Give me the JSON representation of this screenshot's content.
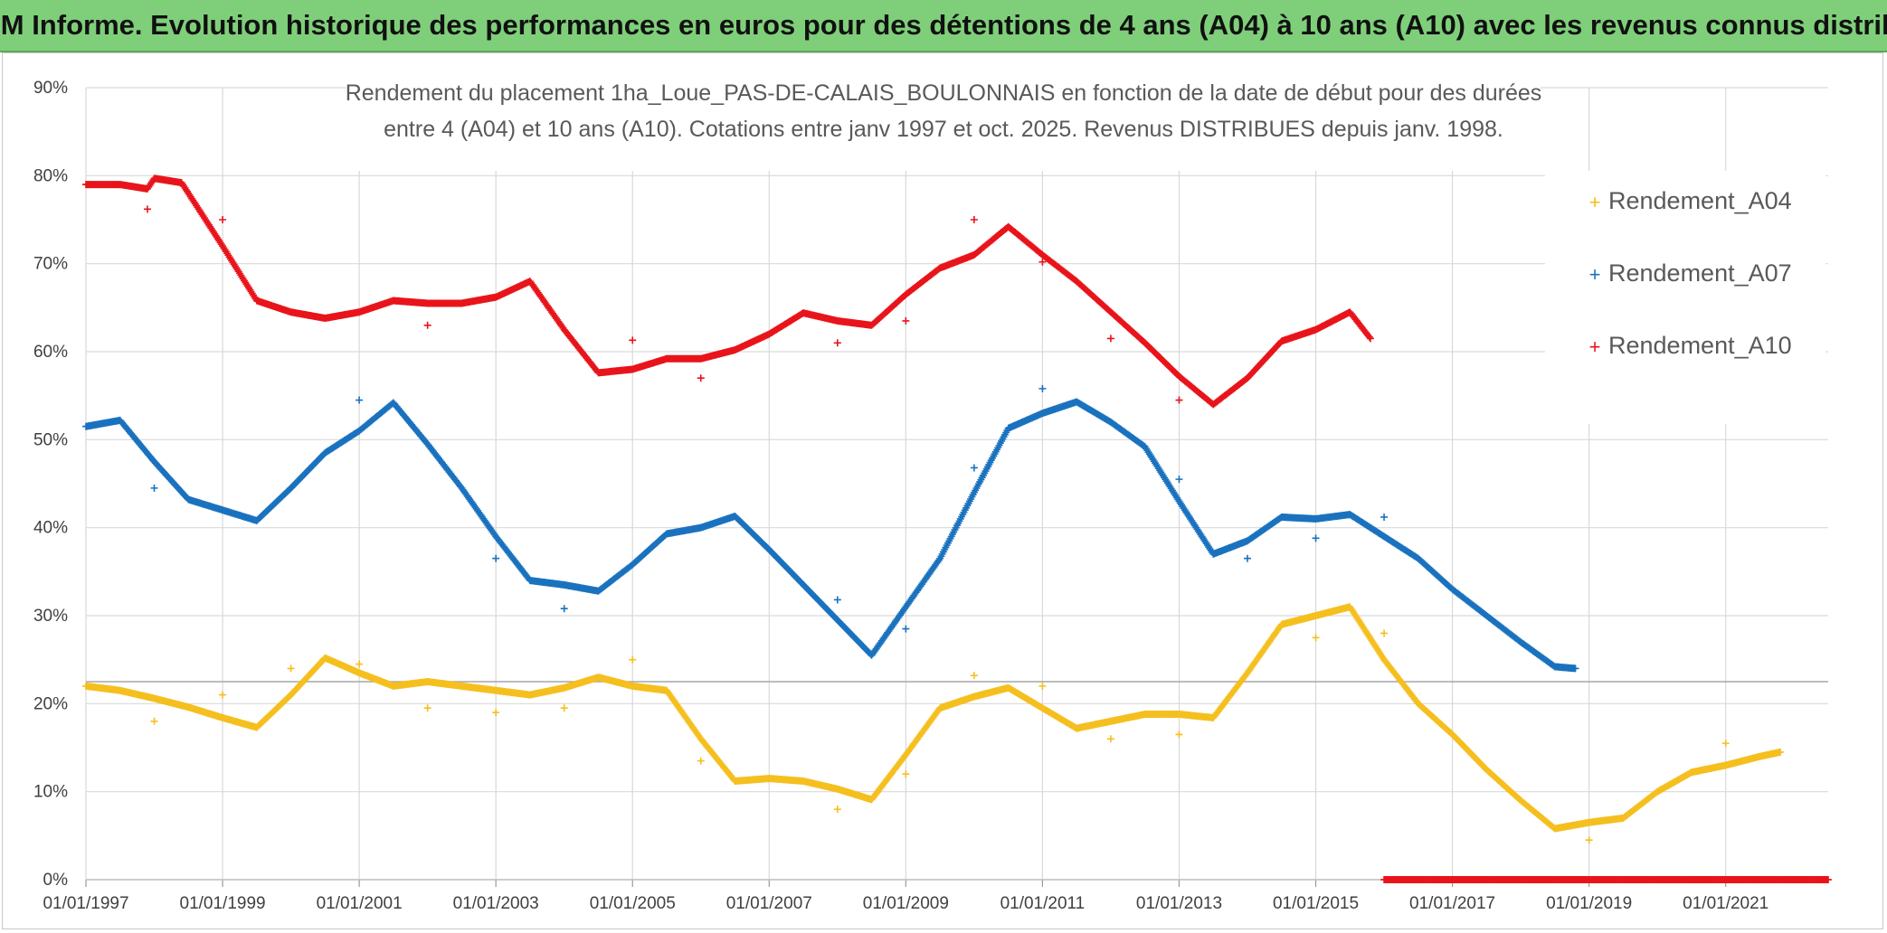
{
  "banner": {
    "title": "ADAM Informe. Evolution historique des performances en euros pour des détentions de 4 ans (A04) à 10 ans (A10) avec les revenus connus distribués"
  },
  "colors": {
    "banner_bg": "#7fcf7a",
    "A04": "#f5bf1f",
    "A07": "#1a72bf",
    "A10": "#e8141b",
    "grid": "#d9d9d9"
  },
  "chart_data": {
    "type": "scatter",
    "title_lines": [
      "Rendement du placement 1ha_Loue_PAS-DE-CALAIS_BOULONNAIS en fonction de la date de début pour des durées",
      "entre 4 (A04) et 10 ans (A10). Cotations entre janv 1997 et oct. 2025. Revenus DISTRIBUES depuis janv. 1998."
    ],
    "xlabel": "",
    "ylabel": "",
    "x_range": [
      1997.0,
      2022.5
    ],
    "ylim": [
      0,
      90
    ],
    "y_ticks": [
      "0%",
      "10%",
      "20%",
      "30%",
      "40%",
      "50%",
      "60%",
      "70%",
      "80%",
      "90%"
    ],
    "x_ticks": [
      "01/01/1997",
      "01/01/1999",
      "01/01/2001",
      "01/01/2003",
      "01/01/2005",
      "01/01/2007",
      "01/01/2009",
      "01/01/2011",
      "01/01/2013",
      "01/01/2015",
      "01/01/2017",
      "01/01/2019",
      "01/01/2021"
    ],
    "x_tick_years": [
      1997,
      1999,
      2001,
      2003,
      2005,
      2007,
      2009,
      2011,
      2013,
      2015,
      2017,
      2019,
      2021
    ],
    "legend_position": "right",
    "reference_line_y": 22.5,
    "series": [
      {
        "name": "Rendement_A04",
        "color": "#f5bf1f",
        "points": [
          [
            1997.0,
            22.0
          ],
          [
            1997.5,
            21.5
          ],
          [
            1998.0,
            20.6
          ],
          [
            1998.5,
            19.6
          ],
          [
            1999.0,
            18.4
          ],
          [
            1999.5,
            17.3
          ],
          [
            2000.0,
            21.0
          ],
          [
            2000.5,
            25.2
          ],
          [
            2001.0,
            23.5
          ],
          [
            2001.5,
            22.0
          ],
          [
            2002.0,
            22.5
          ],
          [
            2002.5,
            22.0
          ],
          [
            2003.0,
            21.5
          ],
          [
            2003.5,
            21.0
          ],
          [
            2004.0,
            21.8
          ],
          [
            2004.5,
            23.0
          ],
          [
            2005.0,
            22.0
          ],
          [
            2005.5,
            21.5
          ],
          [
            2006.0,
            16.0
          ],
          [
            2006.5,
            11.2
          ],
          [
            2007.0,
            11.5
          ],
          [
            2007.5,
            11.2
          ],
          [
            2008.0,
            10.3
          ],
          [
            2008.5,
            9.1
          ],
          [
            2009.0,
            14.2
          ],
          [
            2009.5,
            19.5
          ],
          [
            2010.0,
            20.8
          ],
          [
            2010.5,
            21.8
          ],
          [
            2011.0,
            19.5
          ],
          [
            2011.5,
            17.2
          ],
          [
            2012.0,
            18.0
          ],
          [
            2012.5,
            18.8
          ],
          [
            2013.0,
            18.8
          ],
          [
            2013.5,
            18.4
          ],
          [
            2014.0,
            23.5
          ],
          [
            2014.5,
            29.0
          ],
          [
            2015.0,
            30.0
          ],
          [
            2015.5,
            31.0
          ],
          [
            2016.0,
            25.0
          ],
          [
            2016.5,
            20.0
          ],
          [
            2017.0,
            16.5
          ],
          [
            2017.5,
            12.5
          ],
          [
            2018.0,
            9.0
          ],
          [
            2018.5,
            5.8
          ],
          [
            2019.0,
            6.5
          ],
          [
            2019.5,
            7.0
          ],
          [
            2020.0,
            10.0
          ],
          [
            2020.5,
            12.2
          ],
          [
            2021.0,
            13.0
          ],
          [
            2021.5,
            14.0
          ],
          [
            2021.8,
            14.5
          ]
        ],
        "outliers": [
          [
            1998.0,
            18.0
          ],
          [
            1999.0,
            21.0
          ],
          [
            2000.0,
            24.0
          ],
          [
            2001.0,
            24.5
          ],
          [
            2002.0,
            19.5
          ],
          [
            2003.0,
            19.0
          ],
          [
            2004.0,
            19.5
          ],
          [
            2005.0,
            25.0
          ],
          [
            2006.0,
            13.5
          ],
          [
            2008.0,
            8.0
          ],
          [
            2009.0,
            12.0
          ],
          [
            2010.0,
            23.2
          ],
          [
            2011.0,
            22.0
          ],
          [
            2012.0,
            16.0
          ],
          [
            2013.0,
            16.5
          ],
          [
            2015.0,
            27.5
          ],
          [
            2016.0,
            28.0
          ],
          [
            2019.0,
            4.5
          ],
          [
            2021.0,
            15.5
          ]
        ]
      },
      {
        "name": "Rendement_A07",
        "color": "#1a72bf",
        "points": [
          [
            1997.0,
            51.5
          ],
          [
            1997.5,
            52.2
          ],
          [
            1998.0,
            47.5
          ],
          [
            1998.5,
            43.2
          ],
          [
            1999.0,
            42.0
          ],
          [
            1999.5,
            40.8
          ],
          [
            2000.0,
            44.5
          ],
          [
            2000.5,
            48.5
          ],
          [
            2001.0,
            51.0
          ],
          [
            2001.5,
            54.2
          ],
          [
            2002.0,
            49.5
          ],
          [
            2002.5,
            44.5
          ],
          [
            2003.0,
            39.0
          ],
          [
            2003.5,
            34.0
          ],
          [
            2004.0,
            33.5
          ],
          [
            2004.5,
            32.8
          ],
          [
            2005.0,
            35.8
          ],
          [
            2005.5,
            39.3
          ],
          [
            2006.0,
            40.0
          ],
          [
            2006.5,
            41.3
          ],
          [
            2007.0,
            37.5
          ],
          [
            2007.5,
            33.5
          ],
          [
            2008.0,
            29.5
          ],
          [
            2008.5,
            25.5
          ],
          [
            2009.0,
            31.0
          ],
          [
            2009.5,
            36.5
          ],
          [
            2010.0,
            44.0
          ],
          [
            2010.5,
            51.3
          ],
          [
            2011.0,
            53.0
          ],
          [
            2011.5,
            54.3
          ],
          [
            2012.0,
            52.0
          ],
          [
            2012.5,
            49.2
          ],
          [
            2013.0,
            43.0
          ],
          [
            2013.5,
            37.0
          ],
          [
            2014.0,
            38.5
          ],
          [
            2014.5,
            41.2
          ],
          [
            2015.0,
            41.0
          ],
          [
            2015.5,
            41.5
          ],
          [
            2016.0,
            39.0
          ],
          [
            2016.5,
            36.5
          ],
          [
            2017.0,
            33.0
          ],
          [
            2017.5,
            30.0
          ],
          [
            2018.0,
            27.0
          ],
          [
            2018.5,
            24.2
          ],
          [
            2018.8,
            24.0
          ]
        ],
        "outliers": [
          [
            1998.0,
            44.5
          ],
          [
            2001.0,
            54.5
          ],
          [
            2003.0,
            36.5
          ],
          [
            2004.0,
            30.8
          ],
          [
            2008.0,
            31.8
          ],
          [
            2009.0,
            28.5
          ],
          [
            2010.0,
            46.8
          ],
          [
            2011.0,
            55.8
          ],
          [
            2013.0,
            45.5
          ],
          [
            2014.0,
            36.5
          ],
          [
            2015.0,
            38.8
          ],
          [
            2016.0,
            41.2
          ]
        ]
      },
      {
        "name": "Rendement_A10",
        "color": "#e8141b",
        "points": [
          [
            1997.0,
            79.0
          ],
          [
            1997.5,
            79.0
          ],
          [
            1997.9,
            78.5
          ],
          [
            1998.0,
            79.7
          ],
          [
            1998.4,
            79.2
          ],
          [
            1999.0,
            72.0
          ],
          [
            1999.5,
            65.8
          ],
          [
            2000.0,
            64.5
          ],
          [
            2000.5,
            63.8
          ],
          [
            2001.0,
            64.5
          ],
          [
            2001.5,
            65.8
          ],
          [
            2002.0,
            65.5
          ],
          [
            2002.5,
            65.5
          ],
          [
            2003.0,
            66.2
          ],
          [
            2003.5,
            68.0
          ],
          [
            2004.0,
            62.5
          ],
          [
            2004.5,
            57.6
          ],
          [
            2005.0,
            58.0
          ],
          [
            2005.5,
            59.2
          ],
          [
            2006.0,
            59.2
          ],
          [
            2006.5,
            60.2
          ],
          [
            2007.0,
            62.0
          ],
          [
            2007.5,
            64.4
          ],
          [
            2008.0,
            63.5
          ],
          [
            2008.5,
            63.0
          ],
          [
            2009.0,
            66.5
          ],
          [
            2009.5,
            69.5
          ],
          [
            2010.0,
            71.0
          ],
          [
            2010.5,
            74.2
          ],
          [
            2011.0,
            71.0
          ],
          [
            2011.5,
            68.0
          ],
          [
            2012.0,
            64.5
          ],
          [
            2012.5,
            61.0
          ],
          [
            2013.0,
            57.2
          ],
          [
            2013.5,
            54.0
          ],
          [
            2014.0,
            57.0
          ],
          [
            2014.5,
            61.2
          ],
          [
            2015.0,
            62.5
          ],
          [
            2015.5,
            64.5
          ],
          [
            2015.8,
            61.5
          ]
        ],
        "outliers": [
          [
            1997.9,
            76.2
          ],
          [
            1999.0,
            75.0
          ],
          [
            2002.0,
            63.0
          ],
          [
            2005.0,
            61.3
          ],
          [
            2006.0,
            57.0
          ],
          [
            2008.0,
            61.0
          ],
          [
            2009.0,
            63.5
          ],
          [
            2010.0,
            75.0
          ],
          [
            2011.0,
            70.2
          ],
          [
            2012.0,
            61.5
          ],
          [
            2013.0,
            54.5
          ]
        ],
        "zero_segment": [
          2016.0,
          2022.5
        ]
      }
    ]
  }
}
